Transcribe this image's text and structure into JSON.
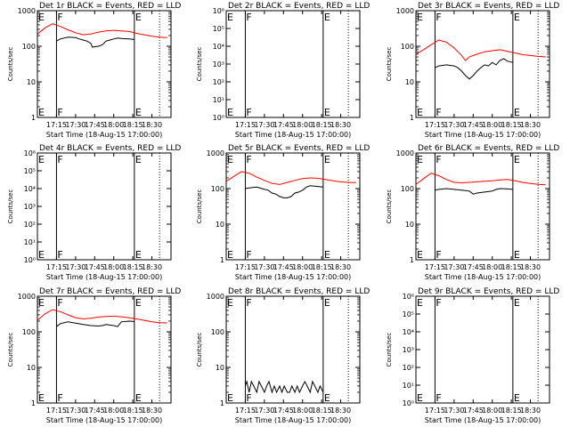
{
  "chart_data": [
    {
      "type": "line",
      "title": "Det 1r BLACK = Events, RED = LLD",
      "xlabel": "Start Time (18-Aug-15 17:00:00)",
      "ylabel": "Counts/sec",
      "yscale": "log",
      "ylim": [
        1,
        1000
      ],
      "yticks": [
        "1",
        "10",
        "100",
        "1000"
      ],
      "xlim": [
        17.0,
        18.75
      ],
      "xticks": [
        "17:15",
        "17:30",
        "17:45",
        "18:00",
        "18:15",
        "18:30"
      ],
      "markers": [
        {
          "x": 17.25,
          "label": "F",
          "style": "solid"
        },
        {
          "x": 18.27,
          "label": "E",
          "style": "solid"
        },
        {
          "x": 18.6,
          "label": "",
          "style": "dotted"
        }
      ],
      "start_marks": [
        "E"
      ],
      "series": [
        {
          "name": "Events",
          "color": "#000000",
          "x": [
            17.25,
            17.3,
            17.4,
            17.5,
            17.55,
            17.6,
            17.65,
            17.7,
            17.72,
            17.8,
            17.85,
            17.9,
            17.95,
            18.0,
            18.05,
            18.1,
            18.2,
            18.27
          ],
          "y": [
            140,
            160,
            180,
            175,
            160,
            150,
            140,
            120,
            95,
            100,
            110,
            140,
            150,
            160,
            170,
            165,
            160,
            155
          ]
        },
        {
          "name": "LLD",
          "color": "#ff0000",
          "x": [
            17.0,
            17.1,
            17.2,
            17.3,
            17.4,
            17.5,
            17.6,
            17.7,
            17.8,
            17.9,
            18.0,
            18.1,
            18.2,
            18.3,
            18.4,
            18.5,
            18.6,
            18.7
          ],
          "y": [
            220,
            330,
            430,
            360,
            290,
            240,
            210,
            220,
            250,
            270,
            280,
            270,
            260,
            230,
            210,
            190,
            180,
            175
          ]
        }
      ]
    },
    {
      "type": "line",
      "title": "Det 2r BLACK = Events, RED = LLD",
      "xlabel": "Start Time (18-Aug-15 17:00:00)",
      "ylabel": "Counts/sec",
      "yscale": "log",
      "ylim": [
        1,
        1000000
      ],
      "yticks": [
        "10⁰",
        "10¹",
        "10²",
        "10³",
        "10⁴",
        "10⁵",
        "10⁶"
      ],
      "xlim": [
        17.0,
        18.75
      ],
      "xticks": [
        "17:15",
        "17:30",
        "17:45",
        "18:00",
        "18:15",
        "18:30"
      ],
      "markers": [
        {
          "x": 17.25,
          "label": "F",
          "style": "solid"
        },
        {
          "x": 18.27,
          "label": "E",
          "style": "solid"
        },
        {
          "x": 18.6,
          "label": "",
          "style": "dotted"
        }
      ],
      "start_marks": [
        "E"
      ],
      "series": []
    },
    {
      "type": "line",
      "title": "Det 3r BLACK = Events, RED = LLD",
      "xlabel": "Start Time (18-Aug-15 17:00:00)",
      "ylabel": "Counts/sec",
      "yscale": "log",
      "ylim": [
        1,
        1000
      ],
      "yticks": [
        "1",
        "10",
        "100",
        "1000"
      ],
      "xlim": [
        17.0,
        18.75
      ],
      "xticks": [
        "17:15",
        "17:30",
        "17:45",
        "18:00",
        "18:15",
        "18:30"
      ],
      "markers": [
        {
          "x": 17.25,
          "label": "F",
          "style": "solid"
        },
        {
          "x": 18.27,
          "label": "E",
          "style": "solid"
        },
        {
          "x": 18.6,
          "label": "",
          "style": "dotted"
        }
      ],
      "start_marks": [
        "E"
      ],
      "series": [
        {
          "name": "Events",
          "color": "#000000",
          "x": [
            17.25,
            17.3,
            17.4,
            17.5,
            17.55,
            17.6,
            17.65,
            17.7,
            17.75,
            17.8,
            17.85,
            17.9,
            17.95,
            18.0,
            18.05,
            18.1,
            18.15,
            18.2,
            18.27
          ],
          "y": [
            25,
            28,
            30,
            28,
            25,
            20,
            15,
            12,
            15,
            20,
            25,
            30,
            28,
            35,
            30,
            40,
            45,
            38,
            35
          ]
        },
        {
          "name": "LLD",
          "color": "#ff0000",
          "x": [
            17.0,
            17.1,
            17.2,
            17.3,
            17.4,
            17.5,
            17.55,
            17.6,
            17.65,
            17.7,
            17.8,
            17.9,
            18.0,
            18.1,
            18.2,
            18.3,
            18.4,
            18.5,
            18.6,
            18.7
          ],
          "y": [
            60,
            80,
            110,
            150,
            130,
            90,
            70,
            55,
            40,
            50,
            60,
            70,
            75,
            80,
            72,
            65,
            58,
            55,
            52,
            50
          ]
        }
      ]
    },
    {
      "type": "line",
      "title": "Det 4r BLACK = Events, RED = LLD",
      "xlabel": "Start Time (18-Aug-15 17:00:00)",
      "ylabel": "Counts/sec",
      "yscale": "log",
      "ylim": [
        1,
        1000000
      ],
      "yticks": [
        "10⁰",
        "10¹",
        "10²",
        "10³",
        "10⁴",
        "10⁵",
        "10⁶"
      ],
      "xlim": [
        17.0,
        18.75
      ],
      "xticks": [
        "17:15",
        "17:30",
        "17:45",
        "18:00",
        "18:15",
        "18:30"
      ],
      "markers": [
        {
          "x": 17.25,
          "label": "F",
          "style": "solid"
        },
        {
          "x": 18.27,
          "label": "E",
          "style": "solid"
        },
        {
          "x": 18.6,
          "label": "",
          "style": "dotted"
        }
      ],
      "start_marks": [
        "E"
      ],
      "series": []
    },
    {
      "type": "line",
      "title": "Det 5r BLACK = Events, RED = LLD",
      "xlabel": "Start Time (18-Aug-15 17:00:00)",
      "ylabel": "Counts/sec",
      "yscale": "log",
      "ylim": [
        1,
        1000
      ],
      "yticks": [
        "1",
        "10",
        "100",
        "1000"
      ],
      "xlim": [
        17.0,
        18.75
      ],
      "xticks": [
        "17:15",
        "17:30",
        "17:45",
        "18:00",
        "18:15",
        "18:30"
      ],
      "markers": [
        {
          "x": 17.25,
          "label": "F",
          "style": "solid"
        },
        {
          "x": 18.27,
          "label": "E",
          "style": "solid"
        },
        {
          "x": 18.6,
          "label": "",
          "style": "dotted"
        }
      ],
      "start_marks": [
        "E"
      ],
      "series": [
        {
          "name": "Events",
          "color": "#000000",
          "x": [
            17.25,
            17.3,
            17.4,
            17.5,
            17.55,
            17.6,
            17.65,
            17.7,
            17.75,
            17.8,
            17.85,
            17.9,
            17.95,
            18.0,
            18.05,
            18.1,
            18.2,
            18.27
          ],
          "y": [
            100,
            105,
            110,
            95,
            90,
            75,
            70,
            60,
            55,
            55,
            60,
            75,
            80,
            90,
            110,
            120,
            115,
            110
          ]
        },
        {
          "name": "LLD",
          "color": "#ff0000",
          "x": [
            17.0,
            17.1,
            17.2,
            17.3,
            17.4,
            17.5,
            17.6,
            17.7,
            17.8,
            17.9,
            18.0,
            18.1,
            18.2,
            18.3,
            18.4,
            18.5,
            18.6,
            18.7
          ],
          "y": [
            160,
            220,
            300,
            270,
            210,
            170,
            140,
            130,
            150,
            170,
            190,
            200,
            195,
            180,
            165,
            155,
            150,
            148
          ]
        }
      ]
    },
    {
      "type": "line",
      "title": "Det 6r BLACK = Events, RED = LLD",
      "xlabel": "Start Time (18-Aug-15 17:00:00)",
      "ylabel": "Counts/sec",
      "yscale": "log",
      "ylim": [
        1,
        1000
      ],
      "yticks": [
        "1",
        "10",
        "100",
        "1000"
      ],
      "xlim": [
        17.0,
        18.75
      ],
      "xticks": [
        "17:15",
        "17:30",
        "17:45",
        "18:00",
        "18:15",
        "18:30"
      ],
      "markers": [
        {
          "x": 17.25,
          "label": "F",
          "style": "solid"
        },
        {
          "x": 18.27,
          "label": "E",
          "style": "solid"
        },
        {
          "x": 18.6,
          "label": "",
          "style": "dotted"
        }
      ],
      "start_marks": [
        "E"
      ],
      "series": [
        {
          "name": "Events",
          "color": "#000000",
          "x": [
            17.25,
            17.3,
            17.4,
            17.5,
            17.6,
            17.7,
            17.75,
            17.8,
            17.9,
            18.0,
            18.05,
            18.1,
            18.2,
            18.27
          ],
          "y": [
            90,
            95,
            100,
            95,
            90,
            85,
            70,
            75,
            80,
            85,
            95,
            100,
            98,
            95
          ]
        },
        {
          "name": "LLD",
          "color": "#ff0000",
          "x": [
            17.0,
            17.1,
            17.2,
            17.3,
            17.4,
            17.5,
            17.6,
            17.7,
            17.8,
            17.9,
            18.0,
            18.1,
            18.2,
            18.3,
            18.4,
            18.5,
            18.6,
            18.7
          ],
          "y": [
            130,
            190,
            270,
            230,
            180,
            150,
            145,
            150,
            155,
            160,
            165,
            175,
            180,
            165,
            150,
            140,
            132,
            128
          ]
        }
      ]
    },
    {
      "type": "line",
      "title": "Det 7r BLACK = Events, RED = LLD",
      "xlabel": "Start Time (18-Aug-15 17:00:00)",
      "ylabel": "Counts/sec",
      "yscale": "log",
      "ylim": [
        1,
        1000
      ],
      "yticks": [
        "1",
        "10",
        "100",
        "1000"
      ],
      "xlim": [
        17.0,
        18.75
      ],
      "xticks": [
        "17:15",
        "17:30",
        "17:45",
        "18:00",
        "18:15",
        "18:30"
      ],
      "markers": [
        {
          "x": 17.25,
          "label": "F",
          "style": "solid"
        },
        {
          "x": 18.27,
          "label": "E",
          "style": "solid"
        },
        {
          "x": 18.6,
          "label": "",
          "style": "dotted"
        }
      ],
      "start_marks": [
        "E"
      ],
      "series": [
        {
          "name": "Events",
          "color": "#000000",
          "x": [
            17.25,
            17.3,
            17.4,
            17.5,
            17.6,
            17.7,
            17.8,
            17.85,
            17.9,
            18.0,
            18.05,
            18.1,
            18.2,
            18.27
          ],
          "y": [
            140,
            170,
            190,
            175,
            160,
            150,
            145,
            150,
            160,
            150,
            140,
            190,
            200,
            195
          ]
        },
        {
          "name": "LLD",
          "color": "#ff0000",
          "x": [
            17.0,
            17.1,
            17.2,
            17.3,
            17.4,
            17.5,
            17.6,
            17.7,
            17.8,
            17.9,
            18.0,
            18.1,
            18.2,
            18.3,
            18.4,
            18.5,
            18.6,
            18.7
          ],
          "y": [
            210,
            320,
            420,
            370,
            300,
            250,
            230,
            240,
            260,
            270,
            275,
            265,
            250,
            230,
            210,
            190,
            180,
            178
          ]
        }
      ]
    },
    {
      "type": "line",
      "title": "Det 8r BLACK = Events, RED = LLD",
      "xlabel": "Start Time (18-Aug-15 17:00:00)",
      "ylabel": "Counts/sec",
      "yscale": "log",
      "ylim": [
        1,
        1000
      ],
      "yticks": [
        "1",
        "10",
        "100",
        "1000"
      ],
      "xlim": [
        17.0,
        18.75
      ],
      "xticks": [
        "17:15",
        "17:30",
        "17:45",
        "18:00",
        "18:15",
        "18:30"
      ],
      "markers": [
        {
          "x": 17.25,
          "label": "F",
          "style": "solid"
        },
        {
          "x": 18.27,
          "label": "E",
          "style": "solid"
        },
        {
          "x": 18.6,
          "label": "",
          "style": "dotted"
        }
      ],
      "start_marks": [
        "E"
      ],
      "series": [
        {
          "name": "Events",
          "color": "#000000",
          "x": [
            17.25,
            17.27,
            17.3,
            17.33,
            17.36,
            17.4,
            17.43,
            17.46,
            17.5,
            17.53,
            17.56,
            17.6,
            17.63,
            17.66,
            17.7,
            17.73,
            17.76,
            17.8,
            17.83,
            17.86,
            17.9,
            17.93,
            17.96,
            18.0,
            18.03,
            18.06,
            18.1,
            18.13,
            18.16,
            18.2,
            18.23,
            18.27
          ],
          "y": [
            3,
            4,
            2,
            4,
            3,
            2,
            4,
            3,
            2,
            3,
            4,
            2,
            3,
            2,
            3,
            2,
            3,
            2,
            2,
            3,
            2,
            3,
            2,
            3,
            4,
            3,
            2,
            4,
            3,
            2,
            3,
            2
          ]
        }
      ]
    },
    {
      "type": "line",
      "title": "Det 9r BLACK = Events, RED = LLD",
      "xlabel": "Start Time (18-Aug-15 17:00:00)",
      "ylabel": "Counts/sec",
      "yscale": "log",
      "ylim": [
        1,
        1000000
      ],
      "yticks": [
        "10⁰",
        "10¹",
        "10²",
        "10³",
        "10⁴",
        "10⁵",
        "10⁶"
      ],
      "xlim": [
        17.0,
        18.75
      ],
      "xticks": [
        "17:15",
        "17:30",
        "17:45",
        "18:00",
        "18:15",
        "18:30"
      ],
      "markers": [
        {
          "x": 17.25,
          "label": "F",
          "style": "solid"
        },
        {
          "x": 18.27,
          "label": "E",
          "style": "solid"
        },
        {
          "x": 18.6,
          "label": "",
          "style": "dotted"
        }
      ],
      "start_marks": [
        "E"
      ],
      "series": []
    }
  ]
}
